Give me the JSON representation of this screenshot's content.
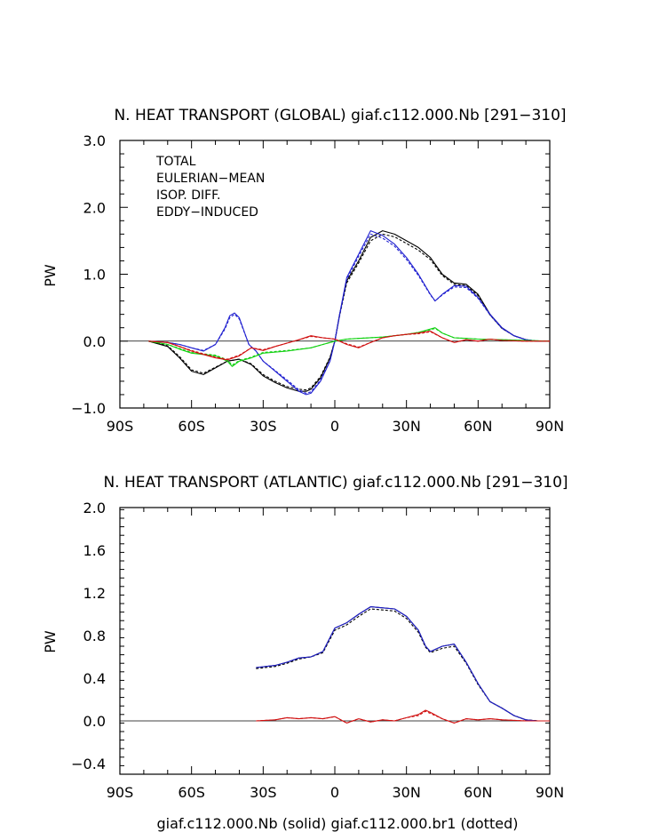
{
  "caption": "giaf.c112.000.Nb (solid) giaf.c112.000.br1 (dotted)",
  "series_styles": {
    "solid_run": "giaf.c112.000.Nb",
    "dotted_run": "giaf.c112.000.br1"
  },
  "colors": {
    "total": "#000000",
    "eulerian": "#2020d0",
    "isop": "#10d010",
    "eddy": "#d01010"
  },
  "chart_data": [
    {
      "type": "line",
      "title": "N. HEAT TRANSPORT (GLOBAL) giaf.c112.000.Nb [291−310]",
      "ylabel": "PW",
      "xlabel": "",
      "xlim": [
        -90,
        90
      ],
      "ylim": [
        -1.0,
        3.0
      ],
      "x_ticks": [
        -90,
        -60,
        -30,
        0,
        30,
        60,
        90
      ],
      "x_tick_labels": [
        "90S",
        "60S",
        "30S",
        "0",
        "30N",
        "60N",
        "90N"
      ],
      "y_ticks": [
        -1.0,
        0.0,
        1.0,
        2.0,
        3.0
      ],
      "y_tick_labels": [
        "−1.0",
        "0.0",
        "1.0",
        "2.0",
        "3.0"
      ],
      "legend_position": "top-left",
      "legend": [
        "TOTAL",
        "EULERIAN−MEAN",
        "ISOP. DIFF.",
        "EDDY−INDUCED"
      ],
      "series": [
        {
          "name": "TOTAL",
          "run": "giaf.c112.000.Nb",
          "style": "solid",
          "color": "#000000",
          "x": [
            -78,
            -70,
            -65,
            -60,
            -55,
            -50,
            -45,
            -40,
            -35,
            -30,
            -25,
            -20,
            -15,
            -12,
            -10,
            -6,
            -2,
            0,
            2,
            5,
            10,
            15,
            20,
            25,
            30,
            35,
            40,
            45,
            50,
            55,
            60,
            65,
            70,
            75,
            80,
            85,
            90
          ],
          "y": [
            0,
            -0.08,
            -0.25,
            -0.45,
            -0.5,
            -0.4,
            -0.3,
            -0.27,
            -0.35,
            -0.52,
            -0.62,
            -0.7,
            -0.75,
            -0.75,
            -0.72,
            -0.55,
            -0.25,
            0,
            0.4,
            0.9,
            1.2,
            1.55,
            1.65,
            1.6,
            1.5,
            1.4,
            1.25,
            1.0,
            0.87,
            0.85,
            0.7,
            0.4,
            0.2,
            0.08,
            0.02,
            0,
            0
          ]
        },
        {
          "name": "TOTAL (dotted)",
          "run": "giaf.c112.000.br1",
          "style": "dotted",
          "color": "#000000",
          "x": [
            -78,
            -70,
            -65,
            -60,
            -55,
            -50,
            -45,
            -40,
            -35,
            -30,
            -25,
            -20,
            -15,
            -12,
            -10,
            -6,
            -2,
            0,
            2,
            5,
            10,
            15,
            20,
            25,
            30,
            35,
            40,
            45,
            50,
            55,
            60,
            65,
            70,
            75,
            80,
            85,
            90
          ],
          "y": [
            0,
            -0.07,
            -0.23,
            -0.43,
            -0.48,
            -0.39,
            -0.3,
            -0.27,
            -0.34,
            -0.5,
            -0.6,
            -0.68,
            -0.72,
            -0.73,
            -0.7,
            -0.53,
            -0.24,
            0,
            0.38,
            0.87,
            1.17,
            1.5,
            1.6,
            1.56,
            1.46,
            1.36,
            1.22,
            0.98,
            0.85,
            0.83,
            0.68,
            0.39,
            0.19,
            0.08,
            0.02,
            0,
            0
          ]
        },
        {
          "name": "EULERIAN−MEAN",
          "run": "giaf.c112.000.Nb",
          "style": "solid",
          "color": "#2020d0",
          "x": [
            -78,
            -70,
            -65,
            -60,
            -55,
            -50,
            -46,
            -44,
            -42,
            -40,
            -38,
            -36,
            -33,
            -30,
            -25,
            -20,
            -15,
            -12,
            -10,
            -6,
            -2,
            0,
            2,
            5,
            10,
            15,
            20,
            25,
            30,
            35,
            40,
            42,
            45,
            50,
            55,
            60,
            65,
            70,
            75,
            80,
            85,
            90
          ],
          "y": [
            0,
            -0.02,
            -0.05,
            -0.1,
            -0.15,
            -0.05,
            0.2,
            0.38,
            0.42,
            0.35,
            0.15,
            -0.05,
            -0.15,
            -0.3,
            -0.45,
            -0.6,
            -0.75,
            -0.8,
            -0.78,
            -0.6,
            -0.3,
            0,
            0.4,
            0.95,
            1.3,
            1.65,
            1.58,
            1.45,
            1.25,
            1.0,
            0.7,
            0.6,
            0.7,
            0.83,
            0.82,
            0.65,
            0.4,
            0.2,
            0.08,
            0.02,
            0,
            0
          ]
        },
        {
          "name": "EULERIAN−MEAN (dotted)",
          "run": "giaf.c112.000.br1",
          "style": "dotted",
          "color": "#2020d0",
          "x": [
            -78,
            -70,
            -65,
            -60,
            -55,
            -50,
            -46,
            -44,
            -42,
            -40,
            -38,
            -36,
            -33,
            -30,
            -25,
            -20,
            -15,
            -12,
            -10,
            -6,
            -2,
            0,
            2,
            5,
            10,
            15,
            20,
            25,
            30,
            35,
            40,
            42,
            45,
            50,
            55,
            60,
            65,
            70,
            75,
            80,
            85,
            90
          ],
          "y": [
            0,
            -0.02,
            -0.05,
            -0.1,
            -0.14,
            -0.05,
            0.18,
            0.35,
            0.4,
            0.33,
            0.14,
            -0.05,
            -0.15,
            -0.3,
            -0.44,
            -0.58,
            -0.73,
            -0.78,
            -0.76,
            -0.58,
            -0.29,
            0,
            0.38,
            0.92,
            1.27,
            1.6,
            1.54,
            1.42,
            1.22,
            0.98,
            0.69,
            0.6,
            0.69,
            0.81,
            0.8,
            0.64,
            0.39,
            0.19,
            0.08,
            0.02,
            0,
            0
          ]
        },
        {
          "name": "ISOP. DIFF.",
          "run": "giaf.c112.000.Nb",
          "style": "solid",
          "color": "#10d010",
          "x": [
            -78,
            -70,
            -65,
            -60,
            -55,
            -50,
            -45,
            -43,
            -40,
            -35,
            -30,
            -20,
            -10,
            -5,
            0,
            5,
            10,
            20,
            30,
            35,
            40,
            42,
            45,
            50,
            55,
            60,
            70,
            80,
            90
          ],
          "y": [
            0,
            -0.05,
            -0.12,
            -0.18,
            -0.2,
            -0.22,
            -0.3,
            -0.38,
            -0.3,
            -0.25,
            -0.18,
            -0.15,
            -0.1,
            -0.05,
            0,
            0.03,
            0.04,
            0.06,
            0.1,
            0.13,
            0.18,
            0.2,
            0.12,
            0.05,
            0.04,
            0.03,
            0.02,
            0.01,
            0
          ]
        },
        {
          "name": "ISOP. DIFF. (dotted)",
          "run": "giaf.c112.000.br1",
          "style": "dotted",
          "color": "#10d010",
          "x": [
            -78,
            -70,
            -65,
            -60,
            -55,
            -50,
            -45,
            -43,
            -40,
            -35,
            -30,
            -20,
            -10,
            -5,
            0,
            5,
            10,
            20,
            30,
            35,
            40,
            42,
            45,
            50,
            55,
            60,
            70,
            80,
            90
          ],
          "y": [
            0,
            -0.05,
            -0.11,
            -0.17,
            -0.19,
            -0.21,
            -0.28,
            -0.36,
            -0.29,
            -0.24,
            -0.17,
            -0.14,
            -0.1,
            -0.05,
            0,
            0.03,
            0.04,
            0.06,
            0.1,
            0.13,
            0.17,
            0.19,
            0.12,
            0.05,
            0.04,
            0.03,
            0.02,
            0.01,
            0
          ]
        },
        {
          "name": "EDDY−INDUCED",
          "run": "giaf.c112.000.Nb",
          "style": "solid",
          "color": "#d01010",
          "x": [
            -78,
            -70,
            -65,
            -60,
            -55,
            -50,
            -45,
            -40,
            -35,
            -30,
            -25,
            -20,
            -15,
            -10,
            -5,
            0,
            5,
            10,
            15,
            20,
            25,
            30,
            35,
            40,
            45,
            50,
            55,
            60,
            65,
            70,
            80,
            90
          ],
          "y": [
            0,
            -0.02,
            -0.08,
            -0.15,
            -0.2,
            -0.25,
            -0.28,
            -0.22,
            -0.1,
            -0.14,
            -0.08,
            -0.03,
            0.02,
            0.08,
            0.05,
            0.03,
            -0.05,
            -0.1,
            -0.02,
            0.05,
            0.08,
            0.1,
            0.12,
            0.15,
            0.05,
            -0.02,
            0.02,
            0.0,
            0.03,
            0.01,
            0,
            0
          ]
        },
        {
          "name": "EDDY−INDUCED (dotted)",
          "run": "giaf.c112.000.br1",
          "style": "dotted",
          "color": "#d01010",
          "x": [
            -78,
            -70,
            -65,
            -60,
            -55,
            -50,
            -45,
            -40,
            -35,
            -30,
            -25,
            -20,
            -15,
            -10,
            -5,
            0,
            5,
            10,
            15,
            20,
            25,
            30,
            35,
            40,
            45,
            50,
            55,
            60,
            65,
            70,
            80,
            90
          ],
          "y": [
            0,
            -0.02,
            -0.08,
            -0.14,
            -0.19,
            -0.24,
            -0.27,
            -0.21,
            -0.1,
            -0.13,
            -0.08,
            -0.03,
            0.02,
            0.07,
            0.05,
            0.03,
            -0.04,
            -0.09,
            -0.02,
            0.05,
            0.08,
            0.1,
            0.11,
            0.14,
            0.05,
            -0.02,
            0.02,
            0.0,
            0.03,
            0.01,
            0,
            0
          ]
        }
      ]
    },
    {
      "type": "line",
      "title": "N. HEAT TRANSPORT (ATLANTIC) giaf.c112.000.Nb [291−310]",
      "ylabel": "PW",
      "xlabel": "giaf.c112.000.Nb (solid) giaf.c112.000.br1 (dotted)",
      "xlim": [
        -90,
        90
      ],
      "ylim": [
        -0.5,
        2.0
      ],
      "x_ticks": [
        -90,
        -60,
        -30,
        0,
        30,
        60,
        90
      ],
      "x_tick_labels": [
        "90S",
        "60S",
        "30S",
        "0",
        "30N",
        "60N",
        "90N"
      ],
      "y_ticks": [
        -0.4,
        0.0,
        0.4,
        0.8,
        1.2,
        1.6,
        2.0
      ],
      "y_tick_labels": [
        "−0.4",
        "0.0",
        "0.4",
        "0.8",
        "1.2",
        "1.6",
        "2.0"
      ],
      "series": [
        {
          "name": "TOTAL",
          "run": "giaf.c112.000.Nb",
          "style": "solid",
          "color": "#000000",
          "x": [
            -33,
            -25,
            -20,
            -15,
            -10,
            -5,
            0,
            5,
            10,
            15,
            20,
            25,
            30,
            35,
            38,
            40,
            45,
            50,
            55,
            60,
            65,
            70,
            75,
            80,
            85,
            90
          ],
          "y": [
            0.5,
            0.52,
            0.55,
            0.59,
            0.6,
            0.65,
            0.87,
            0.92,
            1.0,
            1.07,
            1.06,
            1.05,
            0.98,
            0.85,
            0.7,
            0.65,
            0.7,
            0.72,
            0.55,
            0.35,
            0.18,
            0.12,
            0.05,
            0.01,
            0,
            0
          ]
        },
        {
          "name": "TOTAL (dotted)",
          "run": "giaf.c112.000.br1",
          "style": "dotted",
          "color": "#000000",
          "x": [
            -33,
            -25,
            -20,
            -15,
            -10,
            -5,
            0,
            5,
            10,
            15,
            20,
            25,
            30,
            35,
            38,
            40,
            45,
            50,
            55,
            60,
            65,
            70,
            75,
            80,
            85,
            90
          ],
          "y": [
            0.49,
            0.51,
            0.54,
            0.58,
            0.6,
            0.64,
            0.85,
            0.9,
            0.98,
            1.05,
            1.04,
            1.03,
            0.96,
            0.83,
            0.69,
            0.64,
            0.68,
            0.7,
            0.54,
            0.34,
            0.18,
            0.12,
            0.05,
            0.01,
            0,
            0
          ]
        },
        {
          "name": "EULERIAN−MEAN",
          "run": "giaf.c112.000.Nb",
          "style": "solid",
          "color": "#2020d0",
          "x": [
            -33,
            -25,
            -20,
            -15,
            -10,
            -5,
            0,
            5,
            10,
            15,
            20,
            25,
            30,
            35,
            38,
            40,
            45,
            50,
            55,
            60,
            65,
            70,
            75,
            80,
            85,
            90
          ],
          "y": [
            0.5,
            0.52,
            0.55,
            0.59,
            0.6,
            0.65,
            0.87,
            0.92,
            1.0,
            1.07,
            1.06,
            1.05,
            0.98,
            0.85,
            0.7,
            0.65,
            0.7,
            0.72,
            0.55,
            0.35,
            0.18,
            0.12,
            0.05,
            0.01,
            0,
            0
          ]
        },
        {
          "name": "EDDY−INDUCED",
          "run": "giaf.c112.000.Nb",
          "style": "solid",
          "color": "#d01010",
          "x": [
            -33,
            -25,
            -20,
            -15,
            -10,
            -5,
            0,
            5,
            10,
            15,
            20,
            25,
            30,
            35,
            38,
            40,
            45,
            50,
            55,
            60,
            65,
            70,
            80,
            90
          ],
          "y": [
            0,
            0.01,
            0.03,
            0.02,
            0.03,
            0.02,
            0.04,
            -0.02,
            0.02,
            -0.01,
            0.01,
            0.0,
            0.03,
            0.06,
            0.1,
            0.08,
            0.02,
            -0.02,
            0.02,
            0.01,
            0.02,
            0.01,
            0,
            0
          ]
        },
        {
          "name": "EDDY−INDUCED (dotted)",
          "run": "giaf.c112.000.br1",
          "style": "dotted",
          "color": "#d01010",
          "x": [
            -33,
            -25,
            -20,
            -15,
            -10,
            -5,
            0,
            5,
            10,
            15,
            20,
            25,
            30,
            35,
            38,
            40,
            45,
            50,
            55,
            60,
            65,
            70,
            80,
            90
          ],
          "y": [
            0,
            0.01,
            0.03,
            0.02,
            0.03,
            0.02,
            0.04,
            -0.02,
            0.02,
            -0.01,
            0.01,
            0.0,
            0.03,
            0.05,
            0.09,
            0.07,
            0.02,
            -0.02,
            0.02,
            0.01,
            0.02,
            0.01,
            0,
            0
          ]
        }
      ]
    }
  ]
}
